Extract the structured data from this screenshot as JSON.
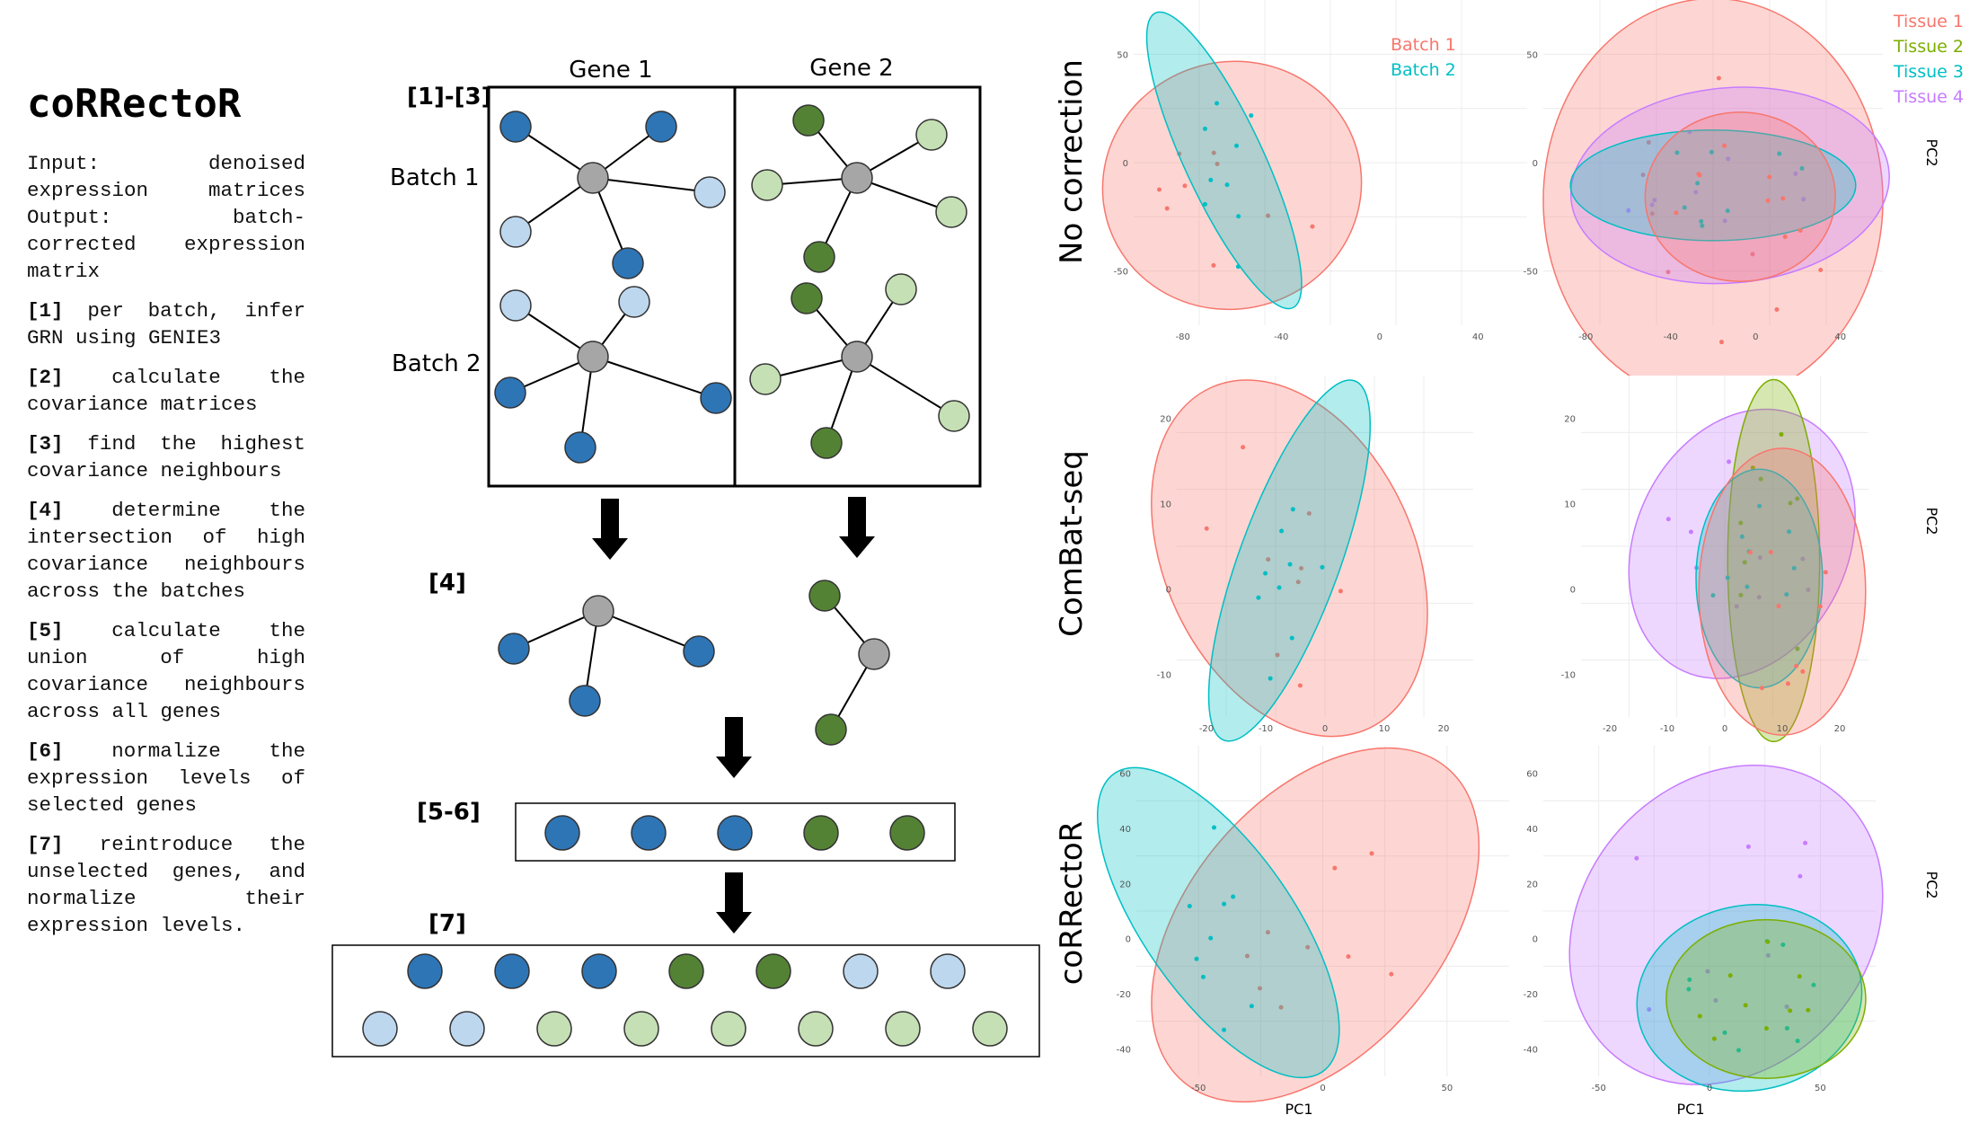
{
  "title": "coRRectoR",
  "io_text": "Input: denoised expression matrices Output: batch-corrected expression matrix",
  "steps": [
    {
      "id": "[1]",
      "text": "per batch, infer GRN using GENIE3"
    },
    {
      "id": "[2]",
      "text": "calculate the covariance matrices"
    },
    {
      "id": "[3]",
      "text": "find the highest covariance neighbours"
    },
    {
      "id": "[4]",
      "text": "determine the intersection of high covariance neighbours across the batches"
    },
    {
      "id": "[5]",
      "text": "calculate the union of high covariance neighbours across all genes"
    },
    {
      "id": "[6]",
      "text": "normalize the expression levels of selected genes"
    },
    {
      "id": "[7]",
      "text": "reintroduce the unselected genes, and normalize their expression levels."
    }
  ],
  "diagram": {
    "gene_labels": [
      "Gene 1",
      "Gene 2"
    ],
    "batch_labels": [
      "Batch 1",
      "Batch 2"
    ],
    "stage_labels": [
      "[1]-[3]",
      "[4]",
      "[5-6]",
      "[7]"
    ],
    "colors": {
      "hub": "#a6a6a6",
      "gene1_dark": "#2e75b6",
      "gene1_light": "#bdd7ee",
      "gene2_dark": "#548235",
      "gene2_light": "#c5e0b4",
      "edge": "#000000"
    }
  },
  "pca": {
    "row_labels": [
      "No correction",
      "ComBat-seq",
      "coRRectoR"
    ],
    "batch_legend": [
      "Batch 1",
      "Batch 2"
    ],
    "tissue_legend": [
      "Tissue 1",
      "Tissue 2",
      "Tissue 3",
      "Tissue 4"
    ],
    "batch_colors": [
      "#f8766d",
      "#00bfc4"
    ],
    "tissue_colors": [
      "#f8766d",
      "#7cae00",
      "#00bfc4",
      "#c77cff"
    ],
    "xlabel": "PC1",
    "ylabel": "PC2",
    "panels": [
      {
        "id": "nc-batch",
        "ticks_x": [
          "-80",
          "-40",
          "0",
          "40"
        ],
        "ticks_y": [
          "50",
          "0",
          "-50"
        ]
      },
      {
        "id": "nc-tissue",
        "ticks_x": [
          "-80",
          "-40",
          "0",
          "40"
        ],
        "ticks_y": [
          "50",
          "0",
          "-50"
        ]
      },
      {
        "id": "cb-batch",
        "ticks_x": [
          "-20",
          "-10",
          "0",
          "10",
          "20"
        ],
        "ticks_y": [
          "20",
          "10",
          "0",
          "-10"
        ]
      },
      {
        "id": "cb-tissue",
        "ticks_x": [
          "-20",
          "-10",
          "0",
          "10",
          "20"
        ],
        "ticks_y": [
          "20",
          "10",
          "0",
          "-10"
        ]
      },
      {
        "id": "cr-batch",
        "ticks_x": [
          "-50",
          "0",
          "50"
        ],
        "ticks_y": [
          "60",
          "40",
          "20",
          "0",
          "-20",
          "-40"
        ]
      },
      {
        "id": "cr-tissue",
        "ticks_x": [
          "-50",
          "0",
          "50"
        ],
        "ticks_y": [
          "60",
          "40",
          "20",
          "0",
          "-20",
          "-40"
        ]
      }
    ]
  }
}
